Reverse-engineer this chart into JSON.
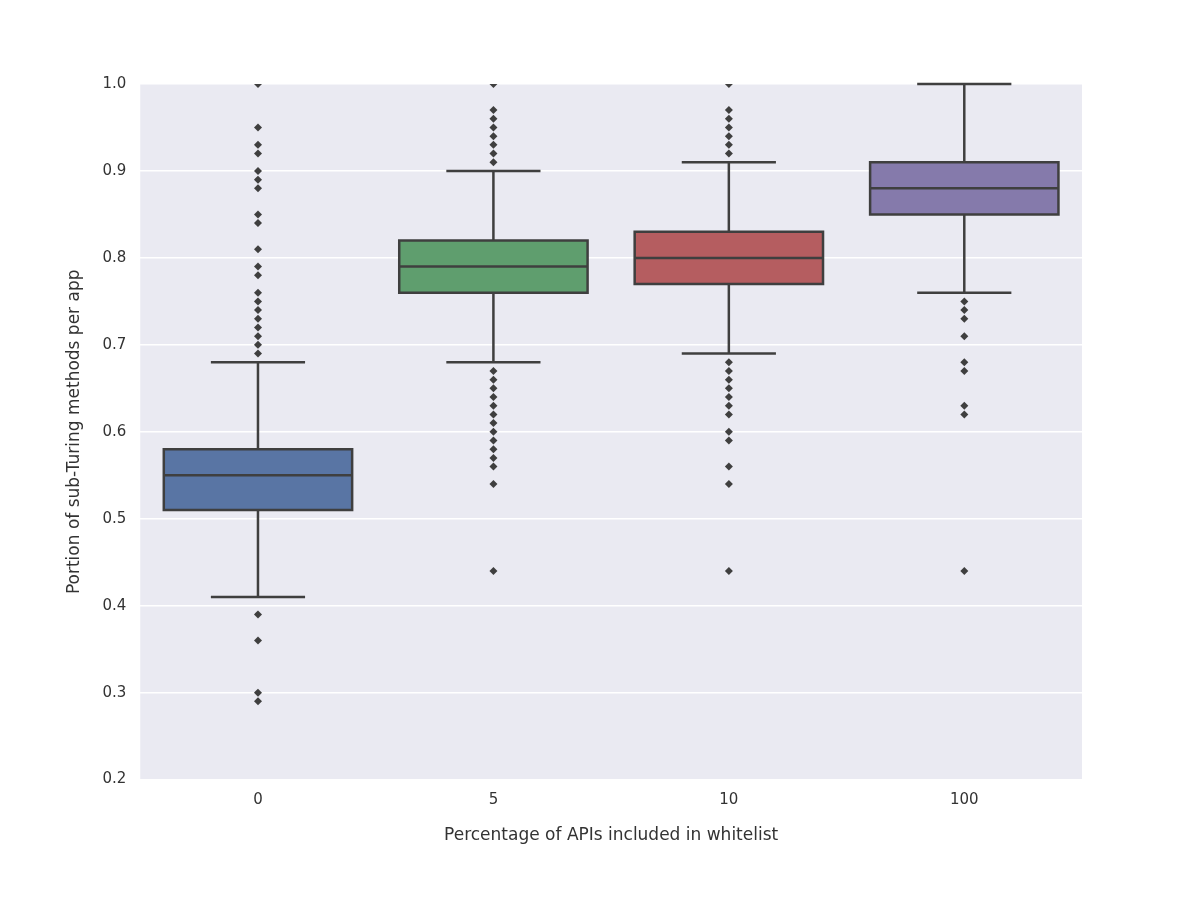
{
  "chart_data": {
    "type": "box",
    "xlabel": "Percentage of APIs included in whitelist",
    "ylabel": "Portion of sub-Turing methods per app",
    "categories": [
      "0",
      "5",
      "10",
      "100"
    ],
    "colors": [
      "#5975a4",
      "#5f9e6e",
      "#b55d60",
      "#857aab"
    ],
    "boxes": [
      {
        "low": 0.41,
        "q1": 0.51,
        "median": 0.55,
        "q3": 0.58,
        "high": 0.68,
        "outliers": [
          1.0,
          0.95,
          0.93,
          0.92,
          0.9,
          0.89,
          0.88,
          0.85,
          0.84,
          0.81,
          0.79,
          0.78,
          0.76,
          0.75,
          0.74,
          0.73,
          0.72,
          0.71,
          0.7,
          0.69,
          0.39,
          0.36,
          0.3,
          0.29
        ]
      },
      {
        "low": 0.68,
        "q1": 0.76,
        "median": 0.79,
        "q3": 0.82,
        "high": 0.9,
        "outliers": [
          1.0,
          0.97,
          0.96,
          0.95,
          0.94,
          0.93,
          0.92,
          0.91,
          0.67,
          0.66,
          0.65,
          0.64,
          0.63,
          0.62,
          0.61,
          0.6,
          0.59,
          0.58,
          0.57,
          0.56,
          0.54,
          0.44
        ]
      },
      {
        "low": 0.69,
        "q1": 0.77,
        "median": 0.8,
        "q3": 0.83,
        "high": 0.91,
        "outliers": [
          1.0,
          0.97,
          0.96,
          0.95,
          0.94,
          0.93,
          0.92,
          0.68,
          0.67,
          0.66,
          0.65,
          0.64,
          0.63,
          0.62,
          0.6,
          0.59,
          0.56,
          0.54,
          0.44
        ]
      },
      {
        "low": 0.76,
        "q1": 0.85,
        "median": 0.88,
        "q3": 0.91,
        "high": 1.0,
        "outliers": [
          0.75,
          0.74,
          0.73,
          0.71,
          0.68,
          0.67,
          0.63,
          0.62,
          0.44
        ]
      }
    ],
    "ylim": [
      0.2,
      1.0
    ],
    "yticks": [
      0.2,
      0.3,
      0.4,
      0.5,
      0.6,
      0.7,
      0.8,
      0.9,
      {
        "value": 1.0,
        "label": "1.0"
      }
    ],
    "grid": "y"
  }
}
